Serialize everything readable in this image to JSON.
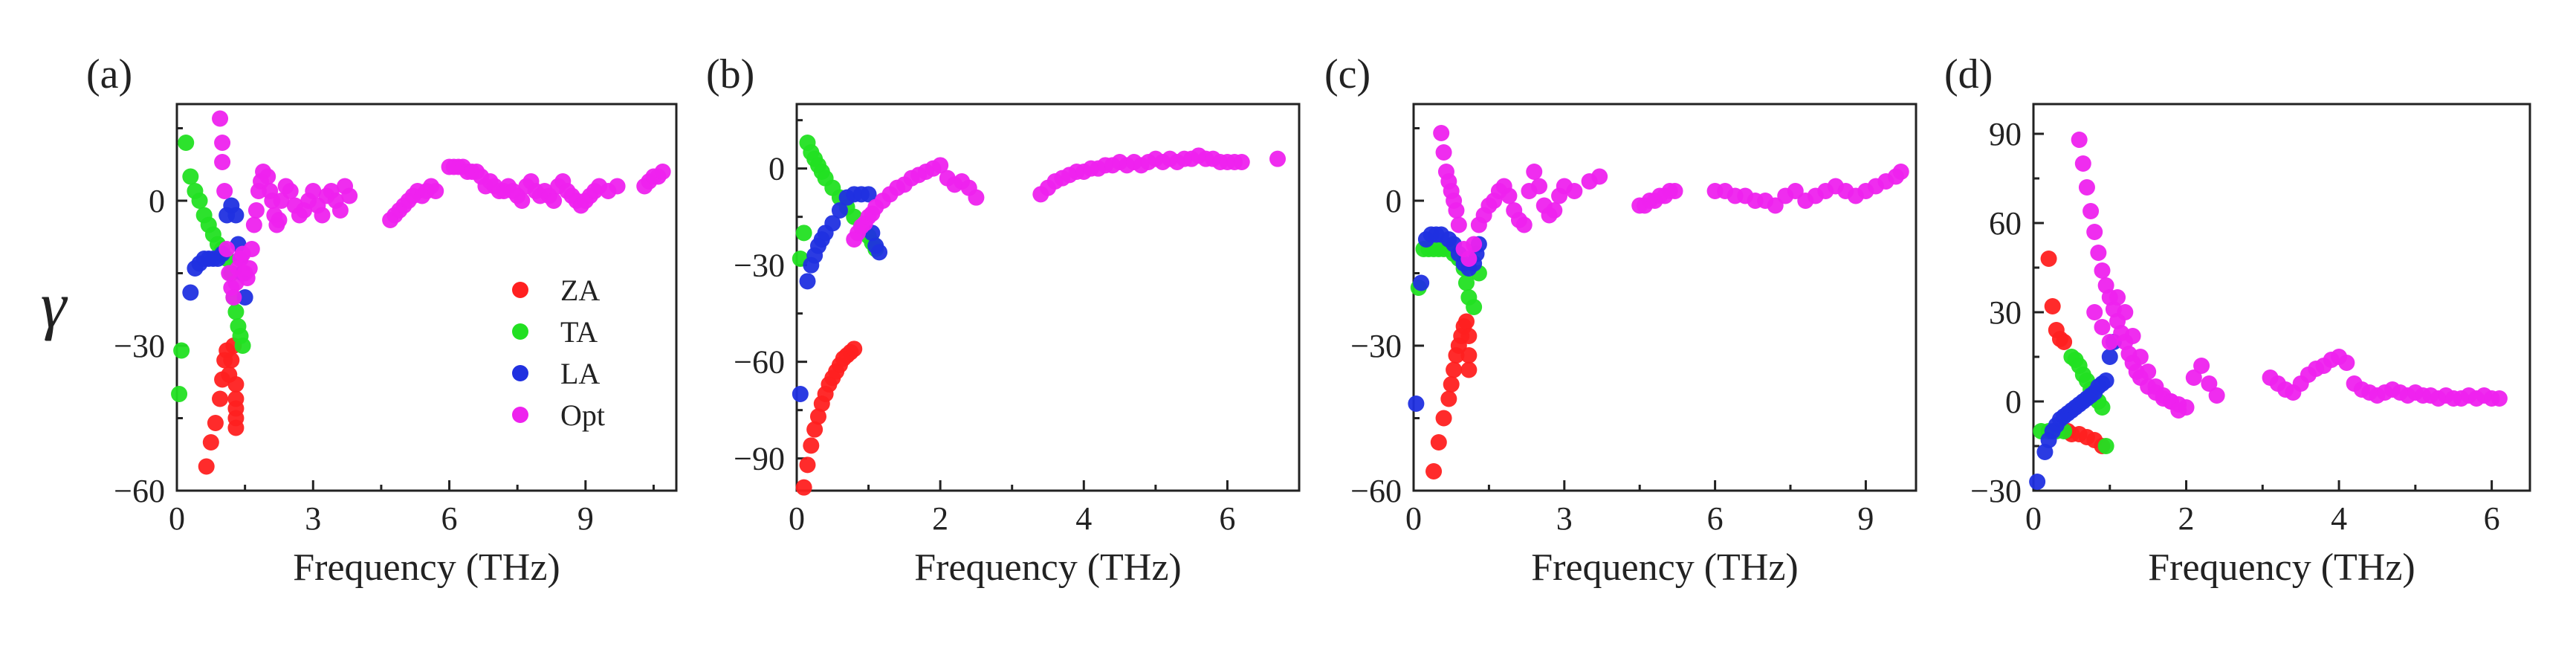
{
  "chart_data": [
    {
      "type": "scatter",
      "panel_label": "(a)",
      "xlabel": "Frequency (THz)",
      "ylabel": "γ",
      "xlim": [
        0,
        11
      ],
      "ylim": [
        -60,
        20
      ],
      "xticks": [
        0,
        3,
        6,
        9
      ],
      "xtick_labels": [
        "0",
        "3",
        "6",
        "9"
      ],
      "yticks": [
        -60,
        -30,
        0
      ],
      "ytick_labels": [
        "−60",
        "−30",
        "0"
      ],
      "legend": [
        "ZA",
        "TA",
        "LA",
        "Opt"
      ],
      "series": [
        {
          "name": "ZA",
          "color": "#ff2020",
          "x": [
            0.65,
            0.75,
            0.85,
            0.95,
            1.0,
            1.05,
            1.1,
            1.15,
            1.2,
            1.25,
            1.3,
            1.3,
            1.3,
            1.3,
            1.3
          ],
          "y": [
            -55,
            -50,
            -46,
            -41,
            -37,
            -33,
            -31,
            -36,
            -33,
            -30,
            -38,
            -41,
            -43,
            -45,
            -47
          ]
        },
        {
          "name": "TA",
          "color": "#22e022",
          "x": [
            0.05,
            0.1,
            0.2,
            0.3,
            0.4,
            0.5,
            0.6,
            0.7,
            0.8,
            0.9,
            1.0,
            1.1,
            1.2,
            1.25,
            1.3,
            1.35,
            1.4,
            1.45
          ],
          "y": [
            -40,
            -31,
            12,
            5,
            2,
            0,
            -3,
            -5,
            -7,
            -9,
            -10,
            -12,
            -15,
            -20,
            -23,
            -26,
            -28,
            -30
          ]
        },
        {
          "name": "LA",
          "color": "#2030e0",
          "x": [
            0.3,
            0.4,
            0.5,
            0.6,
            0.7,
            0.8,
            0.9,
            1.0,
            1.1,
            1.2,
            1.3,
            1.35,
            1.4,
            1.45,
            1.5
          ],
          "y": [
            -19,
            -14,
            -13,
            -12,
            -12,
            -12,
            -12,
            -11,
            -3,
            -1,
            -3,
            -9,
            -12,
            -15,
            -20
          ]
        },
        {
          "name": "Opt",
          "color": "#ee22ee",
          "x": [
            0.95,
            1.0,
            1.0,
            1.05,
            1.1,
            1.15,
            1.2,
            1.25,
            1.3,
            1.35,
            1.4,
            1.45,
            1.5,
            1.55,
            1.6,
            1.65,
            1.7,
            1.75,
            1.8,
            1.85,
            1.9,
            2.0,
            2.05,
            2.1,
            2.15,
            2.2,
            2.25,
            2.3,
            2.4,
            2.5,
            2.6,
            2.7,
            2.8,
            2.9,
            3.0,
            3.1,
            3.2,
            3.3,
            3.4,
            3.5,
            3.6,
            3.7,
            3.8,
            4.7,
            4.8,
            4.9,
            5.0,
            5.1,
            5.2,
            5.3,
            5.4,
            5.5,
            5.6,
            5.7,
            6.0,
            6.1,
            6.2,
            6.3,
            6.4,
            6.5,
            6.6,
            6.7,
            6.8,
            6.9,
            7.0,
            7.1,
            7.2,
            7.3,
            7.4,
            7.5,
            7.6,
            7.7,
            7.8,
            7.9,
            8.0,
            8.1,
            8.2,
            8.3,
            8.4,
            8.5,
            8.6,
            8.7,
            8.8,
            8.9,
            9.0,
            9.1,
            9.2,
            9.3,
            9.5,
            9.7,
            10.3,
            10.4,
            10.5,
            10.6,
            10.7
          ],
          "y": [
            17,
            12,
            8,
            2,
            -10,
            -15,
            -18,
            -20,
            -17,
            -14,
            -12,
            -11,
            -15,
            -16,
            -14,
            -10,
            -5,
            -2,
            2,
            4,
            6,
            5,
            2,
            0,
            -3,
            -5,
            -4,
            0,
            3,
            2,
            -1,
            -3,
            -2,
            0,
            2,
            -1,
            -3,
            1,
            2,
            0,
            -2,
            3,
            1,
            -4,
            -3,
            -2,
            -1,
            0,
            1,
            2,
            1,
            2,
            3,
            2,
            7,
            7,
            7,
            7,
            6,
            6,
            6,
            5,
            3,
            4,
            3,
            2,
            2,
            3,
            2,
            1,
            0,
            3,
            4,
            2,
            1,
            2,
            1,
            0,
            3,
            4,
            2,
            1,
            0,
            -1,
            0,
            1,
            2,
            3,
            2,
            3,
            3,
            4,
            5,
            5,
            6
          ]
        }
      ]
    },
    {
      "type": "scatter",
      "panel_label": "(b)",
      "xlabel": "Frequency (THz)",
      "ylabel": "",
      "xlim": [
        0,
        7
      ],
      "ylim": [
        -100,
        20
      ],
      "xticks": [
        0,
        2,
        4,
        6
      ],
      "xtick_labels": [
        "0",
        "2",
        "4",
        "6"
      ],
      "yticks": [
        -90,
        -60,
        -30,
        0
      ],
      "ytick_labels": [
        "−90",
        "−60",
        "−30",
        "0"
      ],
      "legend": [],
      "series": [
        {
          "name": "ZA",
          "color": "#ff2020",
          "x": [
            0.1,
            0.15,
            0.2,
            0.25,
            0.3,
            0.35,
            0.4,
            0.45,
            0.5,
            0.55,
            0.6,
            0.65,
            0.7,
            0.75,
            0.8
          ],
          "y": [
            -99,
            -92,
            -86,
            -81,
            -77,
            -73,
            -70,
            -67,
            -65,
            -63,
            -61,
            -59,
            -58,
            -57,
            -56
          ]
        },
        {
          "name": "TA",
          "color": "#22e022",
          "x": [
            0.05,
            0.1,
            0.15,
            0.2,
            0.25,
            0.3,
            0.35,
            0.4,
            0.5,
            0.6,
            0.7,
            0.8,
            0.9,
            1.0,
            1.05,
            1.1
          ],
          "y": [
            -28,
            -20,
            8,
            5,
            3,
            1,
            -1,
            -3,
            -6,
            -9,
            -12,
            -15,
            -18,
            -21,
            -23,
            -25
          ]
        },
        {
          "name": "LA",
          "color": "#2030e0",
          "x": [
            0.05,
            0.15,
            0.2,
            0.25,
            0.3,
            0.35,
            0.4,
            0.5,
            0.6,
            0.7,
            0.8,
            0.9,
            1.0,
            1.05,
            1.1,
            1.15
          ],
          "y": [
            -70,
            -35,
            -30,
            -27,
            -24,
            -22,
            -20,
            -17,
            -13,
            -9,
            -8,
            -8,
            -8,
            -20,
            -24,
            -26
          ]
        },
        {
          "name": "Opt",
          "color": "#ee22ee",
          "x": [
            0.8,
            0.85,
            0.9,
            0.95,
            1.0,
            1.05,
            1.1,
            1.2,
            1.3,
            1.4,
            1.5,
            1.6,
            1.7,
            1.8,
            1.9,
            2.0,
            2.1,
            2.2,
            2.3,
            2.4,
            2.5,
            3.4,
            3.5,
            3.6,
            3.7,
            3.8,
            3.9,
            4.0,
            4.1,
            4.2,
            4.3,
            4.4,
            4.5,
            4.6,
            4.7,
            4.8,
            4.9,
            5.0,
            5.1,
            5.2,
            5.3,
            5.4,
            5.5,
            5.6,
            5.7,
            5.8,
            5.9,
            6.0,
            6.1,
            6.2,
            6.7
          ],
          "y": [
            -22,
            -20,
            -18,
            -17,
            -15,
            -14,
            -12,
            -10,
            -8,
            -6,
            -5,
            -3,
            -2,
            -1,
            0,
            1,
            -3,
            -5,
            -4,
            -6,
            -9,
            -8,
            -6,
            -4,
            -3,
            -2,
            -1,
            -1,
            0,
            0,
            1,
            1,
            2,
            1,
            2,
            1,
            2,
            3,
            2,
            3,
            2,
            3,
            3,
            4,
            3,
            3,
            2,
            2,
            2,
            2,
            3
          ]
        }
      ]
    },
    {
      "type": "scatter",
      "panel_label": "(c)",
      "xlabel": "Frequency (THz)",
      "ylabel": "",
      "xlim": [
        0,
        10
      ],
      "ylim": [
        -60,
        20
      ],
      "xticks": [
        0,
        3,
        6,
        9
      ],
      "xtick_labels": [
        "0",
        "3",
        "6",
        "9"
      ],
      "yticks": [
        -60,
        -30,
        0
      ],
      "ytick_labels": [
        "−60",
        "−30",
        "0"
      ],
      "legend": [],
      "series": [
        {
          "name": "ZA",
          "color": "#ff2020",
          "x": [
            0.4,
            0.5,
            0.6,
            0.7,
            0.75,
            0.8,
            0.85,
            0.9,
            0.95,
            1.0,
            1.05,
            1.1,
            1.1,
            1.1
          ],
          "y": [
            -56,
            -50,
            -45,
            -41,
            -38,
            -35,
            -32,
            -30,
            -28,
            -26,
            -25,
            -28,
            -32,
            -35
          ]
        },
        {
          "name": "TA",
          "color": "#22e022",
          "x": [
            0.1,
            0.2,
            0.3,
            0.4,
            0.5,
            0.6,
            0.7,
            0.8,
            0.9,
            1.0,
            1.05,
            1.1,
            1.2,
            1.3
          ],
          "y": [
            -18,
            -10,
            -10,
            -10,
            -10,
            -10,
            -10,
            -11,
            -12,
            -14,
            -17,
            -20,
            -22,
            -15
          ]
        },
        {
          "name": "LA",
          "color": "#2030e0",
          "x": [
            0.05,
            0.15,
            0.25,
            0.35,
            0.45,
            0.55,
            0.7,
            0.8,
            0.9,
            1.0,
            1.1,
            1.2,
            1.25,
            1.3
          ],
          "y": [
            -42,
            -17,
            -8,
            -7,
            -7,
            -7,
            -8,
            -9,
            -11,
            -13,
            -14,
            -13,
            -11,
            -9
          ]
        },
        {
          "name": "Opt",
          "color": "#ee22ee",
          "x": [
            0.55,
            0.6,
            0.65,
            0.7,
            0.75,
            0.8,
            0.85,
            0.9,
            1.0,
            1.1,
            1.2,
            1.3,
            1.4,
            1.5,
            1.6,
            1.7,
            1.8,
            1.9,
            2.0,
            2.1,
            2.2,
            2.3,
            2.4,
            2.5,
            2.6,
            2.7,
            2.8,
            2.9,
            3.0,
            3.2,
            3.5,
            3.7,
            4.5,
            4.6,
            4.7,
            4.8,
            4.9,
            5.0,
            5.1,
            5.2,
            6.0,
            6.2,
            6.4,
            6.6,
            6.8,
            7.0,
            7.2,
            7.4,
            7.6,
            7.8,
            8.0,
            8.2,
            8.4,
            8.6,
            8.8,
            9.0,
            9.2,
            9.4,
            9.6,
            9.7
          ],
          "y": [
            14,
            10,
            6,
            4,
            2,
            0,
            -2,
            -5,
            -10,
            -12,
            -9,
            -5,
            -3,
            -1,
            0,
            2,
            3,
            1,
            -2,
            -4,
            -5,
            2,
            6,
            3,
            -1,
            -3,
            -2,
            1,
            3,
            2,
            4,
            5,
            -1,
            -1,
            0,
            0,
            1,
            1,
            2,
            2,
            2,
            2,
            1,
            1,
            0,
            0,
            -1,
            1,
            2,
            0,
            1,
            2,
            3,
            2,
            1,
            2,
            3,
            4,
            5,
            6
          ]
        }
      ]
    },
    {
      "type": "scatter",
      "panel_label": "(d)",
      "xlabel": "Frequency (THz)",
      "ylabel": "",
      "xlim": [
        0,
        6.5
      ],
      "ylim": [
        -30,
        100
      ],
      "xticks": [
        0,
        2,
        4,
        6
      ],
      "xtick_labels": [
        "0",
        "2",
        "4",
        "6"
      ],
      "yticks": [
        -30,
        0,
        30,
        60,
        90
      ],
      "ytick_labels": [
        "−30",
        "0",
        "30",
        "60",
        "90"
      ],
      "legend": [],
      "series": [
        {
          "name": "ZA",
          "color": "#ff2020",
          "x": [
            0.2,
            0.25,
            0.3,
            0.35,
            0.4,
            0.45,
            0.5,
            0.6,
            0.7,
            0.8,
            0.9
          ],
          "y": [
            48,
            32,
            24,
            21,
            20,
            -10,
            -11,
            -11,
            -12,
            -13,
            -15
          ]
        },
        {
          "name": "TA",
          "color": "#22e022",
          "x": [
            0.1,
            0.2,
            0.3,
            0.4,
            0.5,
            0.55,
            0.6,
            0.65,
            0.7,
            0.75,
            0.8,
            0.85,
            0.9,
            0.95
          ],
          "y": [
            -10,
            -10,
            -10,
            -10,
            15,
            14,
            12,
            9,
            7,
            4,
            2,
            0,
            -2,
            -15
          ]
        },
        {
          "name": "LA",
          "color": "#2030e0",
          "x": [
            0.05,
            0.15,
            0.2,
            0.25,
            0.3,
            0.35,
            0.4,
            0.45,
            0.5,
            0.55,
            0.6,
            0.65,
            0.7,
            0.75,
            0.8,
            0.85,
            0.9,
            0.95,
            1.0,
            1.05
          ],
          "y": [
            -27,
            -17,
            -13,
            -10,
            -8,
            -6,
            -5,
            -4,
            -3,
            -2,
            -1,
            0,
            1,
            2,
            3,
            5,
            6,
            7,
            15,
            20
          ]
        },
        {
          "name": "Opt",
          "color": "#ee22ee",
          "x": [
            0.6,
            0.65,
            0.7,
            0.75,
            0.8,
            0.85,
            0.9,
            0.95,
            1.0,
            1.05,
            1.1,
            1.15,
            1.2,
            1.25,
            1.3,
            1.35,
            1.4,
            1.5,
            1.6,
            1.7,
            1.8,
            1.9,
            2.0,
            2.1,
            2.2,
            2.3,
            2.4,
            0.8,
            0.9,
            1.0,
            1.1,
            1.2,
            1.3,
            1.4,
            1.5,
            1.6,
            1.7,
            1.8,
            1.9,
            3.1,
            3.2,
            3.3,
            3.4,
            3.5,
            3.6,
            3.7,
            3.8,
            3.9,
            4.0,
            4.1,
            4.2,
            4.3,
            4.4,
            4.5,
            4.6,
            4.7,
            4.8,
            4.9,
            5.0,
            5.1,
            5.2,
            5.3,
            5.4,
            5.5,
            5.6,
            5.7,
            5.8,
            5.9,
            6.0,
            6.1
          ],
          "y": [
            88,
            80,
            72,
            64,
            57,
            50,
            44,
            39,
            35,
            31,
            27,
            23,
            20,
            16,
            13,
            10,
            8,
            5,
            3,
            1,
            0,
            -1,
            -2,
            8,
            12,
            6,
            2,
            30,
            25,
            20,
            35,
            30,
            22,
            15,
            10,
            5,
            2,
            0,
            -3,
            8,
            6,
            4,
            3,
            6,
            9,
            11,
            12,
            14,
            15,
            13,
            6,
            4,
            3,
            2,
            3,
            4,
            3,
            2,
            3,
            2,
            2,
            1,
            2,
            1,
            1,
            2,
            1,
            2,
            1,
            1
          ]
        }
      ]
    }
  ]
}
